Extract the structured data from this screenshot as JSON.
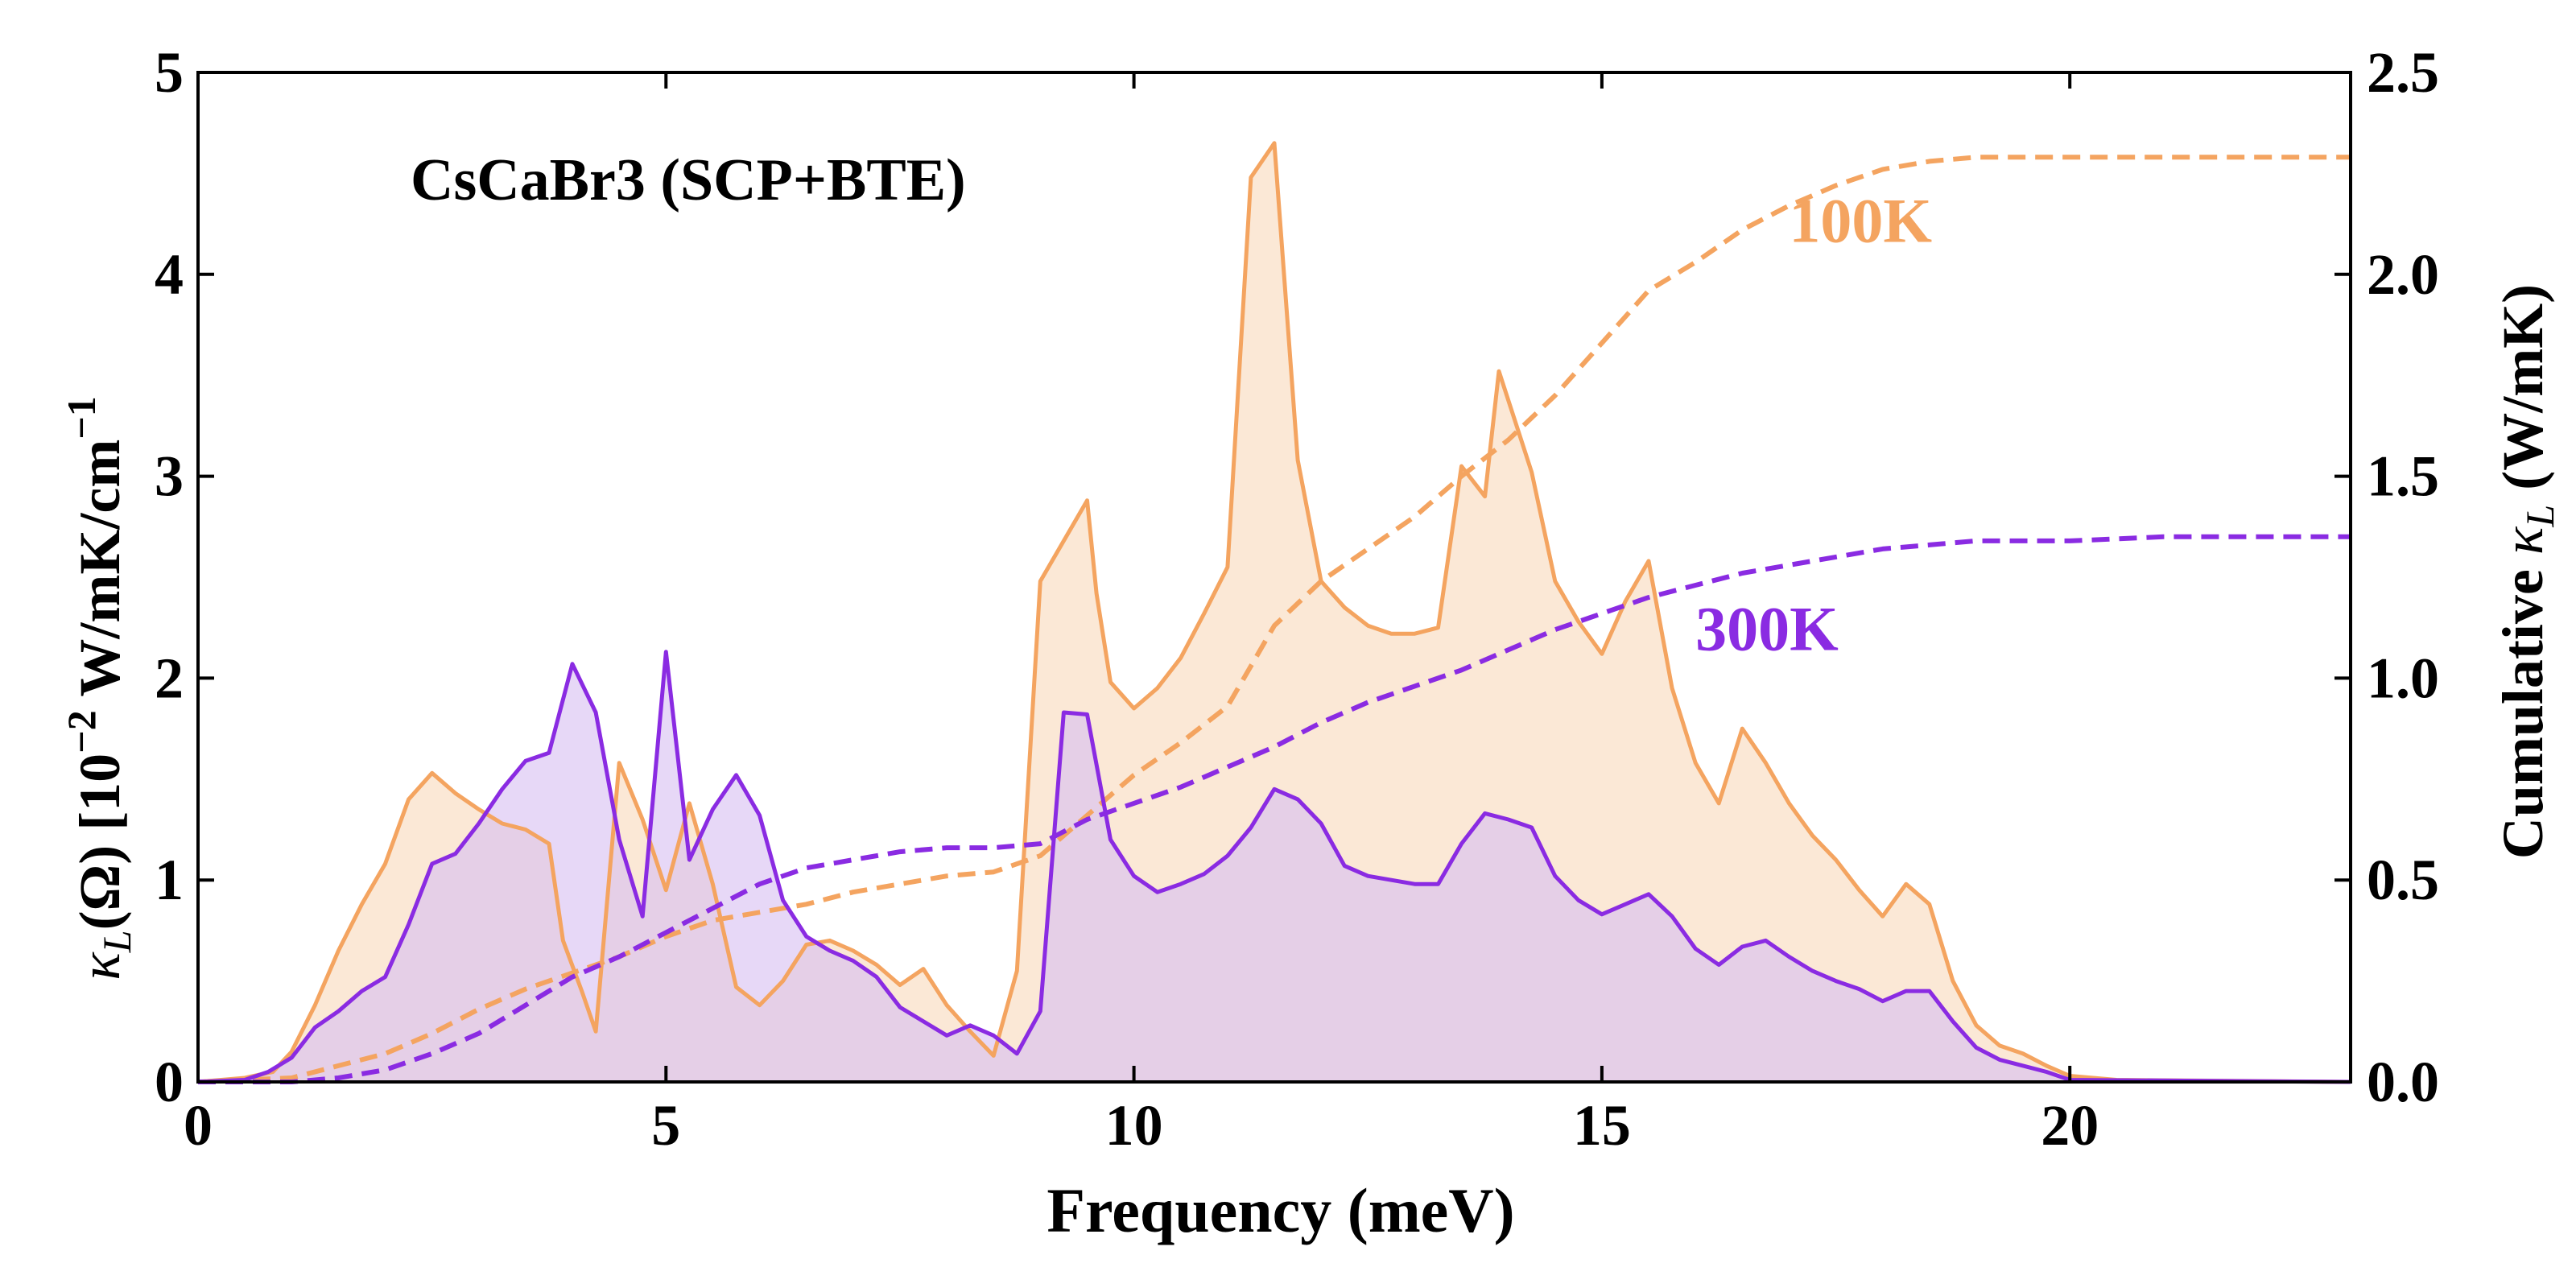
{
  "chart_data": {
    "type": "area",
    "title": "CsCaBr3 (SCP+BTE)",
    "xlabel": "Frequency (meV)",
    "ylabel_left": {
      "kappa": "κ",
      "kappa_sub": "L",
      "omega": "(Ω) [10",
      "exp": "−2",
      "unit": " W/mK/cm",
      "unit_exp": "−1"
    },
    "ylabel_right": {
      "prefix": "Cumulative ",
      "kappa": "κ",
      "kappa_sub": "L",
      "unit": " (W/mK)"
    },
    "xlim": [
      0,
      23
    ],
    "ylim_left": [
      0,
      5
    ],
    "ylim_right": [
      0,
      2.5
    ],
    "xticks": [
      0,
      5,
      10,
      15,
      20
    ],
    "xtick_labels": [
      "0",
      "5",
      "10",
      "15",
      "20"
    ],
    "yticks_left": [
      0,
      1,
      2,
      3,
      4,
      5
    ],
    "ytick_labels_left": [
      "0",
      "1",
      "2",
      "3",
      "4",
      "5"
    ],
    "yticks_right": [
      0,
      0.5,
      1.0,
      1.5,
      2.0,
      2.5
    ],
    "ytick_labels_right": [
      "0.0",
      "0.5",
      "1.0",
      "1.5",
      "2.0",
      "2.5"
    ],
    "grid": false,
    "series": [
      {
        "name": "100K",
        "color": "#F4A460",
        "fill": "#FAE0C8",
        "spectral": {
          "x": [
            0,
            0.5,
            0.8,
            1.0,
            1.25,
            1.5,
            1.75,
            2.0,
            2.25,
            2.5,
            2.75,
            3.0,
            3.25,
            3.5,
            3.75,
            3.9,
            4.1,
            4.25,
            4.5,
            4.75,
            5.0,
            5.25,
            5.5,
            5.75,
            6.0,
            6.25,
            6.5,
            6.75,
            7.0,
            7.25,
            7.5,
            7.75,
            8.0,
            8.25,
            8.5,
            8.75,
            9.0,
            9.25,
            9.5,
            9.6,
            9.75,
            10.0,
            10.25,
            10.5,
            10.75,
            11.0,
            11.25,
            11.5,
            11.75,
            12.0,
            12.25,
            12.5,
            12.75,
            13.0,
            13.25,
            13.5,
            13.75,
            13.9,
            14.25,
            14.5,
            14.75,
            15.0,
            15.25,
            15.5,
            15.75,
            16.0,
            16.25,
            16.5,
            16.75,
            17.0,
            17.25,
            17.5,
            17.75,
            18.0,
            18.25,
            18.5,
            18.75,
            19.0,
            19.25,
            19.5,
            19.75,
            20.0,
            20.5,
            23.0
          ],
          "y": [
            0,
            0.02,
            0.05,
            0.15,
            0.38,
            0.65,
            0.88,
            1.08,
            1.4,
            1.53,
            1.43,
            1.35,
            1.28,
            1.25,
            1.18,
            0.7,
            0.45,
            0.25,
            1.58,
            1.3,
            0.95,
            1.38,
            0.98,
            0.47,
            0.38,
            0.5,
            0.68,
            0.7,
            0.65,
            0.58,
            0.48,
            0.56,
            0.38,
            0.25,
            0.13,
            0.55,
            2.48,
            2.68,
            2.88,
            2.42,
            1.98,
            1.85,
            1.95,
            2.1,
            2.32,
            2.55,
            4.48,
            4.65,
            3.08,
            2.48,
            2.35,
            2.26,
            2.22,
            2.22,
            2.25,
            3.05,
            2.9,
            3.52,
            3.02,
            2.48,
            2.28,
            2.12,
            2.38,
            2.58,
            1.95,
            1.58,
            1.38,
            1.75,
            1.58,
            1.38,
            1.22,
            1.1,
            0.95,
            0.82,
            0.98,
            0.88,
            0.5,
            0.28,
            0.18,
            0.14,
            0.08,
            0.03,
            0.01,
            0
          ]
        },
        "cumulative": {
          "x": [
            0,
            1.0,
            1.5,
            2.0,
            2.5,
            3.0,
            3.5,
            4.0,
            4.5,
            5.0,
            5.5,
            6.0,
            6.5,
            7.0,
            7.5,
            8.0,
            8.5,
            9.0,
            9.5,
            10.0,
            10.5,
            11.0,
            11.5,
            12.0,
            12.5,
            13.0,
            13.5,
            14.0,
            14.5,
            15.0,
            15.5,
            16.0,
            16.5,
            17.0,
            17.5,
            18.0,
            18.5,
            19.0,
            19.5,
            20.0,
            21.0,
            22.0,
            23.0
          ],
          "y": [
            0,
            0.01,
            0.04,
            0.07,
            0.12,
            0.18,
            0.23,
            0.27,
            0.31,
            0.36,
            0.4,
            0.42,
            0.44,
            0.47,
            0.49,
            0.51,
            0.52,
            0.56,
            0.66,
            0.76,
            0.84,
            0.93,
            1.13,
            1.24,
            1.32,
            1.4,
            1.5,
            1.59,
            1.7,
            1.83,
            1.96,
            2.03,
            2.11,
            2.17,
            2.22,
            2.26,
            2.28,
            2.29,
            2.29,
            2.29,
            2.29,
            2.29,
            2.29
          ]
        },
        "label": "100K",
        "label_at": [
          17.0,
          2.08
        ]
      },
      {
        "name": "300K",
        "color": "#8A2BE2",
        "fill": "#D7BEF2",
        "spectral": {
          "x": [
            0,
            0.5,
            0.75,
            1.0,
            1.25,
            1.5,
            1.75,
            2.0,
            2.25,
            2.5,
            2.75,
            3.0,
            3.25,
            3.5,
            3.75,
            4.0,
            4.25,
            4.5,
            4.75,
            5.0,
            5.25,
            5.5,
            5.75,
            6.0,
            6.25,
            6.5,
            6.75,
            7.0,
            7.25,
            7.5,
            7.75,
            8.0,
            8.25,
            8.5,
            8.75,
            9.0,
            9.25,
            9.5,
            9.75,
            10.0,
            10.25,
            10.5,
            10.75,
            11.0,
            11.25,
            11.5,
            11.75,
            12.0,
            12.25,
            12.5,
            12.75,
            13.0,
            13.25,
            13.5,
            13.75,
            14.0,
            14.25,
            14.5,
            14.75,
            15.0,
            15.25,
            15.5,
            15.75,
            16.0,
            16.25,
            16.5,
            16.75,
            17.0,
            17.25,
            17.5,
            17.75,
            18.0,
            18.25,
            18.5,
            18.75,
            19.0,
            19.25,
            19.5,
            19.75,
            20.0,
            23.0
          ],
          "y": [
            0,
            0.01,
            0.05,
            0.12,
            0.27,
            0.35,
            0.45,
            0.52,
            0.78,
            1.08,
            1.13,
            1.28,
            1.45,
            1.59,
            1.63,
            2.07,
            1.83,
            1.2,
            0.82,
            2.13,
            1.1,
            1.35,
            1.52,
            1.32,
            0.9,
            0.72,
            0.65,
            0.6,
            0.52,
            0.37,
            0.3,
            0.23,
            0.28,
            0.23,
            0.14,
            0.35,
            1.83,
            1.82,
            1.2,
            1.02,
            0.94,
            0.98,
            1.03,
            1.12,
            1.26,
            1.45,
            1.4,
            1.28,
            1.07,
            1.02,
            1.0,
            0.98,
            0.98,
            1.18,
            1.33,
            1.3,
            1.26,
            1.02,
            0.9,
            0.83,
            0.88,
            0.93,
            0.82,
            0.66,
            0.58,
            0.67,
            0.7,
            0.62,
            0.55,
            0.5,
            0.46,
            0.4,
            0.45,
            0.45,
            0.3,
            0.17,
            0.11,
            0.08,
            0.05,
            0.01,
            0
          ]
        },
        "cumulative": {
          "x": [
            0,
            1.0,
            1.5,
            2.0,
            2.5,
            3.0,
            3.5,
            4.0,
            4.5,
            5.0,
            5.5,
            6.0,
            6.5,
            7.0,
            7.5,
            8.0,
            8.5,
            9.0,
            9.5,
            10.0,
            10.5,
            11.0,
            11.5,
            12.0,
            12.5,
            13.0,
            13.5,
            14.0,
            14.5,
            15.0,
            15.5,
            16.0,
            16.5,
            17.0,
            17.5,
            18.0,
            18.5,
            19.0,
            19.5,
            20.0,
            21.0,
            22.0,
            23.0
          ],
          "y": [
            0,
            0.0,
            0.01,
            0.03,
            0.07,
            0.12,
            0.19,
            0.26,
            0.31,
            0.37,
            0.43,
            0.49,
            0.53,
            0.55,
            0.57,
            0.58,
            0.58,
            0.59,
            0.65,
            0.69,
            0.73,
            0.78,
            0.83,
            0.89,
            0.94,
            0.98,
            1.02,
            1.07,
            1.12,
            1.16,
            1.2,
            1.23,
            1.26,
            1.28,
            1.3,
            1.32,
            1.33,
            1.34,
            1.34,
            1.34,
            1.35,
            1.35,
            1.35
          ]
        },
        "label": "300K",
        "label_at": [
          16.0,
          1.07
        ]
      }
    ]
  }
}
